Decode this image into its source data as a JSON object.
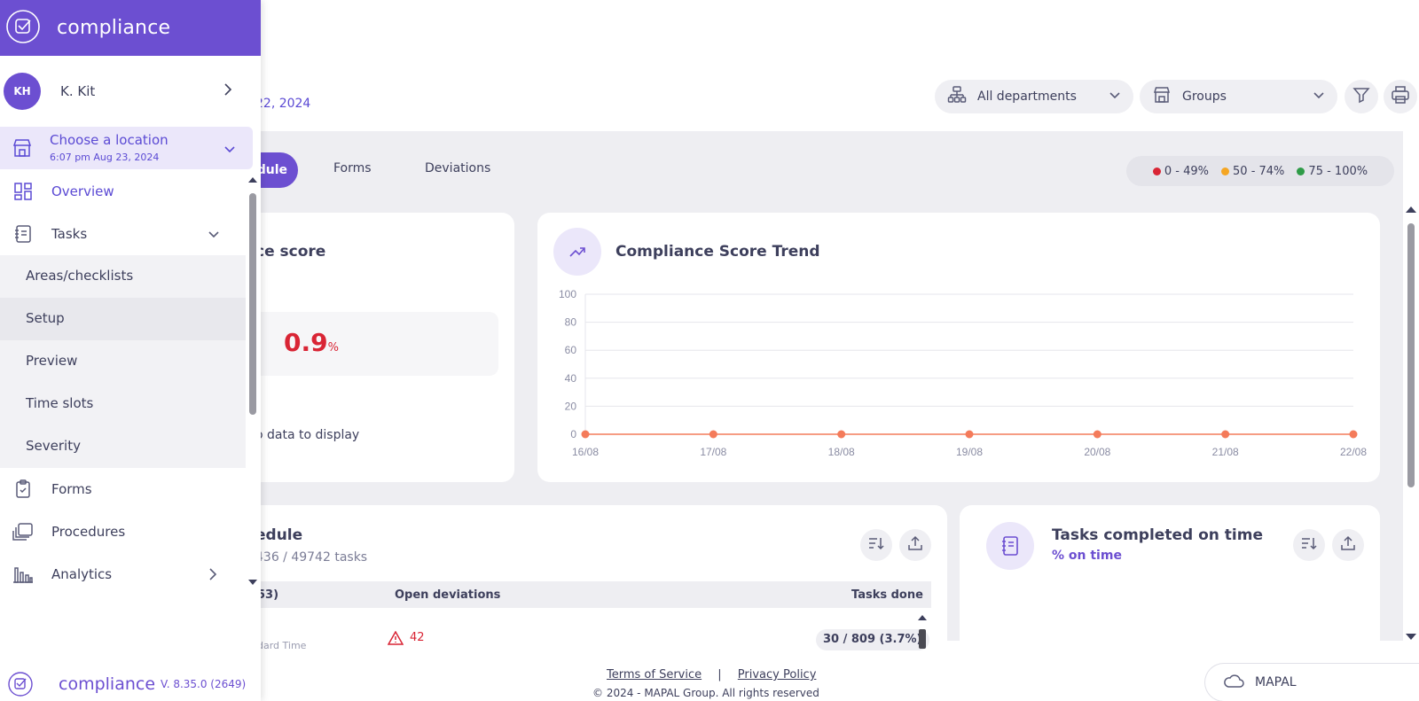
{
  "colors": {
    "brand": "#6c4fd1",
    "danger": "#d92535",
    "warning": "#f5a623",
    "success": "#2e9b47",
    "trend_point": "#f47b5a"
  },
  "sidebar": {
    "brand": "compliance",
    "user": {
      "initials": "KH",
      "name": "K. Kit"
    },
    "location": {
      "title": "Choose a location",
      "subtitle": "6:07 pm Aug 23, 2024"
    },
    "items": {
      "overview": "Overview",
      "tasks": "Tasks",
      "forms": "Forms",
      "procedures": "Procedures",
      "analytics": "Analytics"
    },
    "task_subitems": [
      "Areas/checklists",
      "Setup",
      "Preview",
      "Time slots",
      "Severity"
    ],
    "footer": {
      "brand": "compliance",
      "version": "V. 8.35.0 (2649)"
    }
  },
  "header": {
    "date_range_partial": "22, 2024",
    "departments": "All departments",
    "groups": "Groups"
  },
  "tabs": {
    "active_partial": "edule",
    "forms": "Forms",
    "deviations": "Deviations"
  },
  "legend": [
    "0 - 49%",
    "50 - 74%",
    "75 - 100%"
  ],
  "score_card": {
    "title_partial": "ce score",
    "value": "0.9",
    "unit": "%",
    "no_data_partial": "o data to display"
  },
  "trend_card": {
    "title": "Compliance Score Trend"
  },
  "chart_data": {
    "type": "line",
    "title": "Compliance Score Trend",
    "categories": [
      "16/08",
      "17/08",
      "18/08",
      "19/08",
      "20/08",
      "21/08",
      "22/08"
    ],
    "values": [
      0,
      0,
      0,
      0,
      0,
      0,
      0
    ],
    "ylim": [
      0,
      100
    ],
    "yticks": [
      "100",
      "80",
      "60",
      "40",
      "20",
      "0"
    ],
    "grid": true
  },
  "schedule_card": {
    "title_partial": "edule",
    "subtitle_partial": "436 / 49742 tasks",
    "columns": {
      "first_partial": "53)",
      "open_deviations": "Open deviations",
      "tasks_done": "Tasks done"
    },
    "row": {
      "name_partial": "l",
      "sub_partial": "dard Time",
      "deviations": "42",
      "done": "30 / 809 (3.7%)"
    }
  },
  "tasks_card": {
    "title": "Tasks completed on time",
    "subtitle": "% on time"
  },
  "footer": {
    "terms": "Terms of Service",
    "separator": "|",
    "privacy": "Privacy Policy",
    "copyright": "© 2024 - MAPAL Group. All rights reserved",
    "mapal": "MAPAL"
  }
}
